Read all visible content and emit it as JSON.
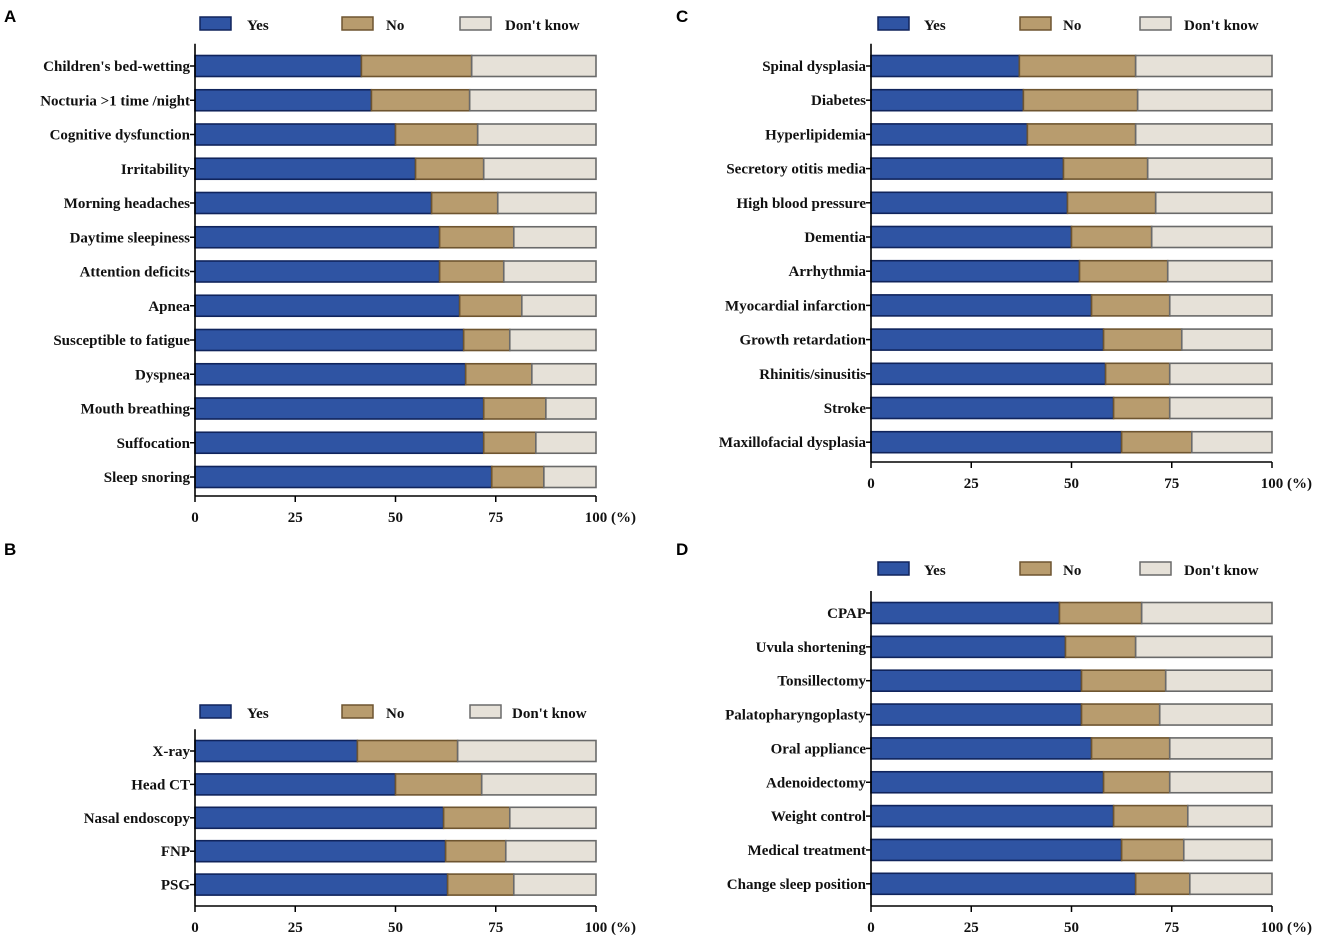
{
  "colors": {
    "yes": "#2f54a3",
    "no": "#b89c6e",
    "dont_know": "#e6e1d8",
    "yes_border": "#10245c",
    "no_border": "#6e5530",
    "dk_border": "#6a6a6a"
  },
  "chart_data": [
    {
      "id": "A",
      "type": "bar",
      "orientation": "horizontal",
      "stacked": true,
      "panel_label": "A",
      "legend": [
        "Yes",
        "No",
        "Don't know"
      ],
      "categories": [
        "Children's bed-wetting",
        "Nocturia >1 time /night",
        "Cognitive dysfunction",
        "Irritability",
        "Morning headaches",
        "Daytime sleepiness",
        "Attention deficits",
        "Apnea",
        "Susceptible to fatigue",
        "Dyspnea",
        "Mouth breathing",
        "Suffocation",
        "Sleep snoring"
      ],
      "series": [
        {
          "name": "Yes",
          "values": [
            41.5,
            44,
            50,
            55,
            59,
            61,
            61,
            66,
            67,
            67.5,
            72,
            72,
            74
          ]
        },
        {
          "name": "No",
          "values": [
            27.5,
            24.5,
            20.5,
            17,
            16.5,
            18.5,
            16,
            15.5,
            11.5,
            16.5,
            15.5,
            13,
            13
          ]
        },
        {
          "name": "Don't know",
          "values": [
            31,
            31.5,
            29.5,
            28,
            24.5,
            20.5,
            23,
            18.5,
            21.5,
            16,
            12.5,
            15,
            13
          ]
        }
      ],
      "xlim": [
        0,
        100
      ],
      "xticks": [
        "0",
        "25",
        "50",
        "75",
        "100"
      ],
      "unit_label": "(%)"
    },
    {
      "id": "B",
      "type": "bar",
      "orientation": "horizontal",
      "stacked": true,
      "panel_label": "B",
      "legend": [
        "Yes",
        "No",
        "Don't know"
      ],
      "categories": [
        "X-ray",
        "Head CT",
        "Nasal endoscopy",
        "FNP",
        "PSG"
      ],
      "series": [
        {
          "name": "Yes",
          "values": [
            40.5,
            50,
            62,
            62.5,
            63
          ]
        },
        {
          "name": "No",
          "values": [
            25,
            21.5,
            16.5,
            15,
            16.5
          ]
        },
        {
          "name": "Don't know",
          "values": [
            34.5,
            28.5,
            21.5,
            22.5,
            20.5
          ]
        }
      ],
      "xlim": [
        0,
        100
      ],
      "xticks": [
        "0",
        "25",
        "50",
        "75",
        "100"
      ],
      "unit_label": "(%)"
    },
    {
      "id": "C",
      "type": "bar",
      "orientation": "horizontal",
      "stacked": true,
      "panel_label": "C",
      "legend": [
        "Yes",
        "No",
        "Don't know"
      ],
      "categories": [
        "Spinal dysplasia",
        "Diabetes",
        "Hyperlipidemia",
        "Secretory otitis media",
        "High blood pressure",
        "Dementia",
        "Arrhythmia",
        "Myocardial infarction",
        "Growth retardation",
        "Rhinitis/sinusitis",
        "Stroke",
        "Maxillofacial dysplasia"
      ],
      "series": [
        {
          "name": "Yes",
          "values": [
            37,
            38,
            39,
            48,
            49,
            50,
            52,
            55,
            58,
            58.5,
            60.5,
            62.5
          ]
        },
        {
          "name": "No",
          "values": [
            29,
            28.5,
            27,
            21,
            22,
            20,
            22,
            19.5,
            19.5,
            16,
            14,
            17.5
          ]
        },
        {
          "name": "Don't know",
          "values": [
            34,
            33.5,
            34,
            31,
            29,
            30,
            26,
            25.5,
            22.5,
            25.5,
            25.5,
            20
          ]
        }
      ],
      "xlim": [
        0,
        100
      ],
      "xticks": [
        "0",
        "25",
        "50",
        "75",
        "100"
      ],
      "unit_label": "(%)"
    },
    {
      "id": "D",
      "type": "bar",
      "orientation": "horizontal",
      "stacked": true,
      "panel_label": "D",
      "legend": [
        "Yes",
        "No",
        "Don't know"
      ],
      "categories": [
        "CPAP",
        "Uvula shortening",
        "Tonsillectomy",
        "Palatopharyngoplasty",
        "Oral appliance",
        "Adenoidectomy",
        "Weight control",
        "Medical treatment",
        "Change sleep position"
      ],
      "series": [
        {
          "name": "Yes",
          "values": [
            47,
            48.5,
            52.5,
            52.5,
            55,
            58,
            60.5,
            62.5,
            66
          ]
        },
        {
          "name": "No",
          "values": [
            20.5,
            17.5,
            21,
            19.5,
            19.5,
            16.5,
            18.5,
            15.5,
            13.5
          ]
        },
        {
          "name": "Don't know",
          "values": [
            32.5,
            34,
            26.5,
            28,
            25.5,
            25.5,
            21,
            22,
            20.5
          ]
        }
      ],
      "xlim": [
        0,
        100
      ],
      "xticks": [
        "0",
        "25",
        "50",
        "75",
        "100"
      ],
      "unit_label": "(%)"
    }
  ]
}
